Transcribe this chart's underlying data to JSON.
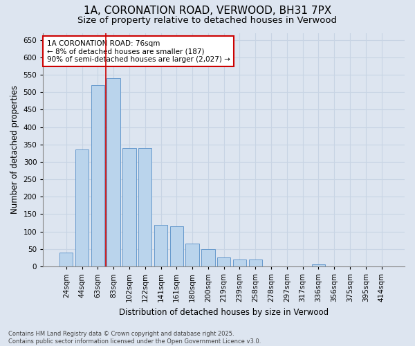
{
  "title": "1A, CORONATION ROAD, VERWOOD, BH31 7PX",
  "subtitle": "Size of property relative to detached houses in Verwood",
  "xlabel": "Distribution of detached houses by size in Verwood",
  "ylabel": "Number of detached properties",
  "footer_line1": "Contains HM Land Registry data © Crown copyright and database right 2025.",
  "footer_line2": "Contains public sector information licensed under the Open Government Licence v3.0.",
  "bins": [
    "24sqm",
    "44sqm",
    "63sqm",
    "83sqm",
    "102sqm",
    "122sqm",
    "141sqm",
    "161sqm",
    "180sqm",
    "200sqm",
    "219sqm",
    "239sqm",
    "258sqm",
    "278sqm",
    "297sqm",
    "317sqm",
    "336sqm",
    "356sqm",
    "375sqm",
    "395sqm",
    "414sqm"
  ],
  "values": [
    40,
    335,
    520,
    540,
    340,
    340,
    120,
    115,
    65,
    50,
    25,
    20,
    20,
    0,
    0,
    0,
    5,
    0,
    0,
    0,
    0
  ],
  "bar_color": "#bad4ec",
  "bar_edge_color": "#6699cc",
  "property_line_x": 2.5,
  "annotation_line1": "1A CORONATION ROAD: 76sqm",
  "annotation_line2": "← 8% of detached houses are smaller (187)",
  "annotation_line3": "90% of semi-detached houses are larger (2,027) →",
  "annotation_box_facecolor": "#ffffff",
  "annotation_box_edgecolor": "#cc0000",
  "vline_color": "#cc0000",
  "ylim": [
    0,
    670
  ],
  "yticks": [
    0,
    50,
    100,
    150,
    200,
    250,
    300,
    350,
    400,
    450,
    500,
    550,
    600,
    650
  ],
  "grid_color": "#c8d4e4",
  "background_color": "#dde5f0",
  "title_fontsize": 11,
  "subtitle_fontsize": 9.5,
  "ylabel_fontsize": 8.5,
  "xlabel_fontsize": 8.5,
  "tick_fontsize": 7.5,
  "annot_fontsize": 7.5,
  "footer_fontsize": 6
}
